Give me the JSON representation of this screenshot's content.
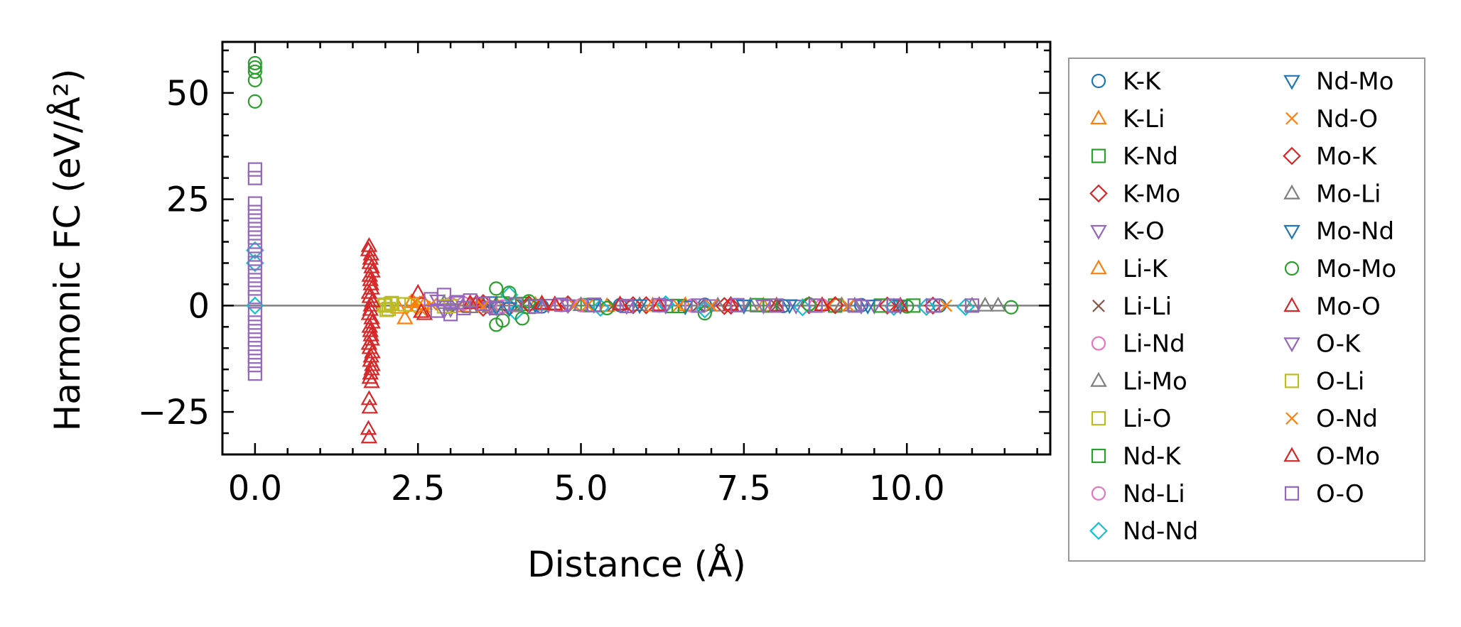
{
  "chart_data": {
    "type": "scatter",
    "title": "",
    "xlabel": "Distance (Å)",
    "ylabel": "Harmonic FC (eV/Å²)",
    "xlim": [
      -0.5,
      12.2
    ],
    "ylim": [
      -35,
      62
    ],
    "x_ticks": [
      {
        "value": 0.0,
        "label": "0.0"
      },
      {
        "value": 2.5,
        "label": "2.5"
      },
      {
        "value": 5.0,
        "label": "5.0"
      },
      {
        "value": 7.5,
        "label": "7.5"
      },
      {
        "value": 10.0,
        "label": "10.0"
      }
    ],
    "y_ticks": [
      {
        "value": -25,
        "label": "−25"
      },
      {
        "value": 0,
        "label": "0"
      },
      {
        "value": 25,
        "label": "25"
      },
      {
        "value": 50,
        "label": "50"
      }
    ],
    "zero_line": 0,
    "grid": false,
    "legend_position": "outside-right",
    "series": [
      {
        "name": "K-K",
        "marker": "circle",
        "color": "#1f77b4",
        "points": [
          [
            4.0,
            0.1
          ],
          [
            4.4,
            -0.2
          ],
          [
            5.6,
            0.1
          ],
          [
            6.9,
            0.2
          ],
          [
            8.1,
            -0.1
          ],
          [
            9.3,
            0.1
          ],
          [
            10.5,
            0.0
          ]
        ]
      },
      {
        "name": "K-Li",
        "marker": "triangle-up",
        "color": "#ff7f0e",
        "points": [
          [
            3.3,
            -0.4
          ],
          [
            3.7,
            0.3
          ],
          [
            4.3,
            0.2
          ],
          [
            5.4,
            -0.1
          ],
          [
            6.6,
            0.1
          ],
          [
            7.8,
            0.0
          ],
          [
            9.0,
            0.1
          ]
        ]
      },
      {
        "name": "K-Nd",
        "marker": "square",
        "color": "#2ca02c",
        "points": [
          [
            3.8,
            0.5
          ],
          [
            4.2,
            -0.3
          ],
          [
            5.2,
            0.2
          ],
          [
            6.5,
            -0.1
          ],
          [
            7.7,
            0.1
          ],
          [
            8.9,
            0.0
          ],
          [
            10.1,
            0.0
          ]
        ]
      },
      {
        "name": "K-Mo",
        "marker": "diamond",
        "color": "#d62728",
        "points": [
          [
            3.5,
            0.6
          ],
          [
            3.9,
            -0.4
          ],
          [
            4.8,
            0.3
          ],
          [
            6.0,
            0.1
          ],
          [
            7.2,
            -0.1
          ],
          [
            8.5,
            0.1
          ],
          [
            9.7,
            0.0
          ]
        ]
      },
      {
        "name": "K-O",
        "marker": "triangle-down",
        "color": "#9467bd",
        "points": [
          [
            2.8,
            1.2
          ],
          [
            3.0,
            -0.8
          ],
          [
            3.4,
            0.5
          ],
          [
            4.5,
            0.2
          ],
          [
            5.7,
            -0.1
          ],
          [
            7.0,
            0.1
          ],
          [
            8.3,
            0.0
          ],
          [
            9.5,
            0.0
          ]
        ]
      },
      {
        "name": "Li-K",
        "marker": "triangle-up",
        "color": "#ff7f0e",
        "points": [
          [
            2.2,
            -0.5
          ],
          [
            2.3,
            -3.0
          ],
          [
            2.4,
            0.8
          ],
          [
            2.6,
            0.4
          ],
          [
            3.2,
            -0.2
          ],
          [
            4.6,
            0.1
          ],
          [
            6.1,
            0.0
          ]
        ]
      },
      {
        "name": "Li-Li",
        "marker": "x",
        "color": "#8c564b",
        "points": [
          [
            2.7,
            0.3
          ],
          [
            3.1,
            -0.2
          ],
          [
            4.1,
            0.1
          ],
          [
            5.5,
            0.1
          ],
          [
            6.8,
            0.0
          ],
          [
            8.0,
            0.0
          ],
          [
            9.9,
            0.0
          ]
        ]
      },
      {
        "name": "Li-Nd",
        "marker": "circle",
        "color": "#e377c2",
        "points": [
          [
            3.0,
            0.4
          ],
          [
            3.6,
            -0.3
          ],
          [
            4.7,
            0.1
          ],
          [
            6.2,
            0.0
          ],
          [
            7.4,
            0.1
          ],
          [
            8.7,
            0.0
          ]
        ]
      },
      {
        "name": "Li-Mo",
        "marker": "triangle-up",
        "color": "#7f7f7f",
        "points": [
          [
            2.9,
            0.6
          ],
          [
            3.3,
            -0.4
          ],
          [
            4.4,
            0.2
          ],
          [
            5.9,
            0.1
          ],
          [
            7.6,
            0.0
          ],
          [
            9.2,
            0.0
          ],
          [
            11.0,
            0.0
          ]
        ]
      },
      {
        "name": "Li-O",
        "marker": "square",
        "color": "#bcbd22",
        "points": [
          [
            2.0,
            0.0
          ],
          [
            2.05,
            -0.8
          ],
          [
            2.1,
            0.6
          ],
          [
            2.3,
            0.3
          ],
          [
            2.9,
            -0.2
          ],
          [
            4.0,
            0.1
          ]
        ]
      },
      {
        "name": "Nd-K",
        "marker": "square",
        "color": "#2ca02c",
        "points": [
          [
            3.7,
            -0.6
          ],
          [
            4.1,
            0.4
          ],
          [
            5.1,
            0.1
          ],
          [
            6.4,
            -0.1
          ],
          [
            7.9,
            0.0
          ],
          [
            9.6,
            0.0
          ]
        ]
      },
      {
        "name": "Nd-Li",
        "marker": "circle",
        "color": "#e377c2",
        "points": [
          [
            3.2,
            0.5
          ],
          [
            3.8,
            -0.2
          ],
          [
            5.0,
            0.1
          ],
          [
            6.7,
            0.0
          ],
          [
            8.6,
            0.0
          ]
        ]
      },
      {
        "name": "Nd-Nd",
        "marker": "diamond",
        "color": "#17becf",
        "points": [
          [
            0.0,
            13
          ],
          [
            0.0,
            10
          ],
          [
            0.0,
            0.0
          ],
          [
            3.9,
            2.5
          ],
          [
            4.0,
            -1.5
          ],
          [
            5.3,
            -0.5
          ],
          [
            6.3,
            0.3
          ],
          [
            6.9,
            -0.9
          ],
          [
            8.4,
            -0.4
          ],
          [
            9.8,
            -0.3
          ],
          [
            10.3,
            -0.3
          ],
          [
            10.9,
            -0.3
          ]
        ]
      },
      {
        "name": "Nd-Mo",
        "marker": "triangle-down",
        "color": "#1f77b4",
        "points": [
          [
            3.6,
            0.8
          ],
          [
            3.9,
            -0.6
          ],
          [
            5.2,
            0.2
          ],
          [
            6.6,
            -0.2
          ],
          [
            8.2,
            0.1
          ],
          [
            9.9,
            0.0
          ]
        ]
      },
      {
        "name": "Nd-O",
        "marker": "x",
        "color": "#ff7f0e",
        "points": [
          [
            2.4,
            -0.8
          ],
          [
            2.5,
            1.2
          ],
          [
            2.6,
            -0.3
          ],
          [
            3.4,
            0.4
          ],
          [
            4.9,
            0.1
          ],
          [
            6.5,
            0.0
          ],
          [
            8.8,
            0.0
          ],
          [
            10.6,
            0.0
          ]
        ]
      },
      {
        "name": "Mo-K",
        "marker": "diamond",
        "color": "#d62728",
        "points": [
          [
            3.5,
            -0.5
          ],
          [
            4.2,
            0.3
          ],
          [
            5.8,
            0.1
          ],
          [
            7.3,
            0.0
          ],
          [
            8.9,
            0.1
          ],
          [
            10.4,
            0.0
          ]
        ]
      },
      {
        "name": "Mo-Li",
        "marker": "triangle-up",
        "color": "#7f7f7f",
        "points": [
          [
            3.0,
            0.2
          ],
          [
            3.6,
            -0.3
          ],
          [
            5.0,
            0.1
          ],
          [
            7.1,
            0.0
          ],
          [
            9.0,
            0.0
          ],
          [
            11.2,
            0.0
          ],
          [
            11.4,
            0.0
          ]
        ]
      },
      {
        "name": "Mo-Nd",
        "marker": "triangle-down",
        "color": "#1f77b4",
        "points": [
          [
            3.7,
            -0.4
          ],
          [
            4.3,
            0.2
          ],
          [
            5.9,
            0.1
          ],
          [
            7.5,
            0.0
          ],
          [
            9.4,
            0.0
          ]
        ]
      },
      {
        "name": "Mo-Mo",
        "marker": "circle",
        "color": "#2ca02c",
        "points": [
          [
            0.0,
            57
          ],
          [
            0.0,
            56
          ],
          [
            0.0,
            55
          ],
          [
            0.0,
            53
          ],
          [
            0.0,
            48
          ],
          [
            3.7,
            4.0
          ],
          [
            3.7,
            -4.5
          ],
          [
            3.8,
            -3.5
          ],
          [
            3.9,
            3.0
          ],
          [
            4.1,
            -3.0
          ],
          [
            4.2,
            1.0
          ],
          [
            5.4,
            -0.6
          ],
          [
            6.9,
            -1.8
          ],
          [
            8.5,
            0.3
          ],
          [
            10.0,
            -0.2
          ],
          [
            11.6,
            -0.4
          ]
        ]
      },
      {
        "name": "Mo-O",
        "marker": "triangle-up",
        "color": "#d62728",
        "points": [
          [
            1.75,
            14
          ],
          [
            1.78,
            12
          ],
          [
            1.76,
            10
          ],
          [
            1.8,
            8
          ],
          [
            1.77,
            6
          ],
          [
            1.79,
            4
          ],
          [
            1.76,
            2
          ],
          [
            1.78,
            0
          ],
          [
            1.75,
            -2
          ],
          [
            1.8,
            -4
          ],
          [
            1.77,
            -6
          ],
          [
            1.79,
            -8
          ],
          [
            1.76,
            -10
          ],
          [
            1.78,
            -12
          ],
          [
            1.8,
            -14
          ],
          [
            1.77,
            -16
          ],
          [
            1.79,
            -18
          ],
          [
            1.75,
            -22
          ],
          [
            1.76,
            -24
          ],
          [
            1.74,
            -29
          ],
          [
            1.75,
            -31
          ],
          [
            2.5,
            3.0
          ],
          [
            2.6,
            -2.0
          ],
          [
            3.4,
            0.8
          ],
          [
            4.4,
            0.5
          ],
          [
            5.6,
            0.3
          ],
          [
            7.3,
            0.2
          ],
          [
            8.7,
            0.1
          ],
          [
            9.9,
            0.0
          ]
        ]
      },
      {
        "name": "O-K",
        "marker": "triangle-down",
        "color": "#9467bd",
        "points": [
          [
            2.9,
            -1.2
          ],
          [
            3.1,
            0.9
          ],
          [
            3.6,
            -0.4
          ],
          [
            4.8,
            0.1
          ],
          [
            6.3,
            0.0
          ],
          [
            7.8,
            0.0
          ],
          [
            9.3,
            0.0
          ]
        ]
      },
      {
        "name": "O-Li",
        "marker": "square",
        "color": "#bcbd22",
        "points": [
          [
            1.98,
            0.2
          ],
          [
            2.02,
            -1.0
          ],
          [
            2.08,
            0.4
          ],
          [
            2.4,
            0.2
          ],
          [
            3.0,
            -0.1
          ]
        ]
      },
      {
        "name": "O-Nd",
        "marker": "x",
        "color": "#ff7f0e",
        "points": [
          [
            2.45,
            0.9
          ],
          [
            2.55,
            -1.1
          ],
          [
            2.7,
            0.3
          ],
          [
            3.5,
            -0.2
          ],
          [
            5.1,
            0.1
          ],
          [
            7.0,
            0.0
          ],
          [
            9.1,
            0.0
          ]
        ]
      },
      {
        "name": "O-Mo",
        "marker": "triangle-up",
        "color": "#d62728",
        "points": [
          [
            1.74,
            13
          ],
          [
            1.77,
            11
          ],
          [
            1.79,
            9
          ],
          [
            1.76,
            7
          ],
          [
            1.78,
            5
          ],
          [
            1.75,
            3
          ],
          [
            1.8,
            1
          ],
          [
            1.77,
            -1
          ],
          [
            1.79,
            -3
          ],
          [
            1.76,
            -5
          ],
          [
            1.78,
            -7
          ],
          [
            1.75,
            -9
          ],
          [
            1.8,
            -11
          ],
          [
            1.77,
            -13
          ],
          [
            1.79,
            -15
          ],
          [
            1.76,
            -17
          ],
          [
            2.55,
            -1.5
          ],
          [
            3.3,
            0.6
          ],
          [
            4.6,
            0.3
          ],
          [
            6.2,
            0.1
          ],
          [
            8.0,
            0.0
          ]
        ]
      },
      {
        "name": "O-O",
        "marker": "square",
        "color": "#9467bd",
        "points": [
          [
            0.0,
            32
          ],
          [
            0.0,
            30
          ],
          [
            0.0,
            24
          ],
          [
            0.0,
            22
          ],
          [
            0.0,
            20
          ],
          [
            0.0,
            18
          ],
          [
            0.0,
            16
          ],
          [
            0.0,
            14
          ],
          [
            0.0,
            12
          ],
          [
            0.0,
            10
          ],
          [
            0.0,
            8
          ],
          [
            0.0,
            6
          ],
          [
            0.0,
            4
          ],
          [
            0.0,
            2
          ],
          [
            0.0,
            -2
          ],
          [
            0.0,
            -4
          ],
          [
            0.0,
            -6
          ],
          [
            0.0,
            -8
          ],
          [
            0.0,
            -10
          ],
          [
            0.0,
            -12
          ],
          [
            0.0,
            -14
          ],
          [
            0.0,
            -16
          ],
          [
            2.7,
            1.5
          ],
          [
            2.8,
            -1.2
          ],
          [
            2.9,
            2.5
          ],
          [
            3.0,
            -2.0
          ],
          [
            3.1,
            0.8
          ],
          [
            3.2,
            -0.6
          ],
          [
            3.3,
            1.2
          ],
          [
            3.5,
            0.4
          ],
          [
            3.7,
            -0.5
          ],
          [
            4.0,
            0.3
          ],
          [
            4.3,
            -0.2
          ],
          [
            4.7,
            0.2
          ],
          [
            5.2,
            0.1
          ],
          [
            5.7,
            -0.1
          ],
          [
            6.2,
            0.1
          ],
          [
            6.8,
            0.0
          ],
          [
            7.4,
            0.1
          ],
          [
            8.0,
            0.0
          ],
          [
            8.6,
            0.0
          ],
          [
            9.2,
            0.0
          ],
          [
            9.8,
            0.0
          ],
          [
            10.4,
            0.0
          ],
          [
            11.0,
            0.0
          ]
        ]
      }
    ]
  }
}
